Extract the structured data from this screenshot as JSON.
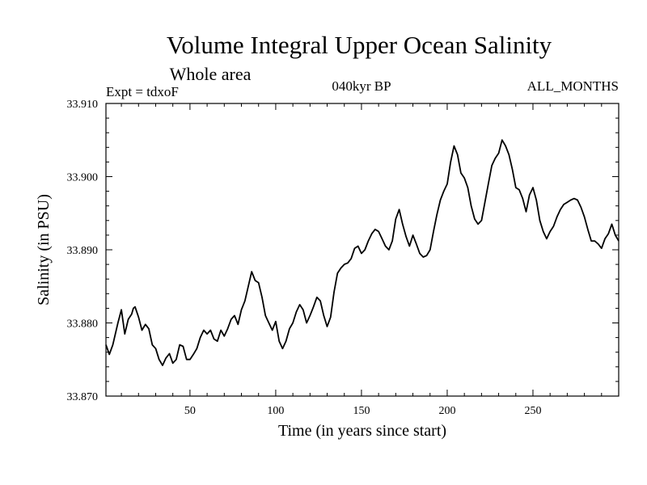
{
  "chart_data": {
    "type": "line",
    "title": "Volume Integral Upper Ocean Salinity",
    "subtitle": "Whole area",
    "header_left": "Expt = tdxoF",
    "header_center": "040kyr BP",
    "header_right": "ALL_MONTHS",
    "xlabel": "Time (in years since start)",
    "ylabel": "Salinity (in PSU)",
    "xlim": [
      1,
      300
    ],
    "ylim": [
      33.87,
      33.91
    ],
    "x_ticks": [
      50,
      100,
      150,
      200,
      250
    ],
    "x_tick_labels": [
      "50",
      "100",
      "150",
      "200",
      "250"
    ],
    "y_ticks": [
      33.87,
      33.88,
      33.89,
      33.9,
      33.91
    ],
    "y_tick_labels": [
      "33.870",
      "33.880",
      "33.890",
      "33.900",
      "33.910"
    ],
    "grid": false,
    "series": [
      {
        "color": "#000000",
        "x": [
          1,
          3,
          5,
          8,
          10,
          12,
          14,
          16,
          17,
          18,
          20,
          22,
          24,
          26,
          28,
          30,
          32,
          34,
          36,
          38,
          40,
          42,
          44,
          46,
          48,
          50,
          52,
          54,
          56,
          58,
          60,
          62,
          64,
          66,
          68,
          70,
          72,
          74,
          76,
          78,
          80,
          82,
          84,
          86,
          88,
          90,
          92,
          94,
          96,
          98,
          100,
          102,
          104,
          106,
          108,
          110,
          112,
          114,
          116,
          118,
          120,
          122,
          124,
          126,
          128,
          130,
          132,
          134,
          136,
          138,
          140,
          142,
          144,
          146,
          148,
          150,
          152,
          154,
          156,
          158,
          160,
          162,
          164,
          166,
          168,
          170,
          172,
          174,
          176,
          178,
          180,
          182,
          184,
          186,
          188,
          190,
          192,
          194,
          196,
          198,
          200,
          202,
          204,
          206,
          208,
          210,
          212,
          214,
          216,
          218,
          220,
          222,
          224,
          226,
          228,
          230,
          232,
          234,
          236,
          238,
          240,
          242,
          244,
          246,
          248,
          250,
          252,
          254,
          256,
          258,
          260,
          262,
          264,
          266,
          268,
          270,
          272,
          274,
          276,
          278,
          280,
          282,
          284,
          286,
          288,
          290,
          292,
          294,
          296,
          298,
          300
        ],
        "y": [
          33.877,
          33.8757,
          33.877,
          33.88,
          33.8818,
          33.8785,
          33.8805,
          33.8812,
          33.882,
          33.8822,
          33.8808,
          33.879,
          33.8798,
          33.8792,
          33.877,
          33.8765,
          33.875,
          33.8742,
          33.8752,
          33.8758,
          33.8745,
          33.875,
          33.877,
          33.8768,
          33.875,
          33.875,
          33.8757,
          33.8765,
          33.878,
          33.879,
          33.8785,
          33.879,
          33.8778,
          33.8775,
          33.879,
          33.8782,
          33.8792,
          33.8805,
          33.881,
          33.8798,
          33.8818,
          33.883,
          33.885,
          33.887,
          33.8858,
          33.8855,
          33.8835,
          33.881,
          33.88,
          33.879,
          33.8802,
          33.8775,
          33.8765,
          33.8775,
          33.8792,
          33.88,
          33.8815,
          33.8825,
          33.8818,
          33.88,
          33.881,
          33.8822,
          33.8835,
          33.883,
          33.881,
          33.8795,
          33.8808,
          33.8842,
          33.8868,
          33.8875,
          33.888,
          33.8882,
          33.8888,
          33.8902,
          33.8905,
          33.8895,
          33.89,
          33.8912,
          33.8922,
          33.8928,
          33.8925,
          33.8915,
          33.8905,
          33.89,
          33.8912,
          33.8942,
          33.8955,
          33.8935,
          33.8918,
          33.8905,
          33.892,
          33.8908,
          33.8895,
          33.889,
          33.8892,
          33.89,
          33.8925,
          33.8948,
          33.8968,
          33.898,
          33.899,
          33.902,
          33.9042,
          33.903,
          33.9005,
          33.8998,
          33.8985,
          33.896,
          33.8942,
          33.8935,
          33.894,
          33.8965,
          33.899,
          33.9015,
          33.9025,
          33.9032,
          33.905,
          33.9042,
          33.903,
          33.901,
          33.8985,
          33.8982,
          33.897,
          33.8952,
          33.8975,
          33.8985,
          33.8968,
          33.894,
          33.8925,
          33.8915,
          33.8925,
          33.8932,
          33.8945,
          33.8955,
          33.8962,
          33.8965,
          33.8968,
          33.897,
          33.8968,
          33.8958,
          33.8945,
          33.8928,
          33.8912,
          33.8912,
          33.8908,
          33.8902,
          33.8915,
          33.8922,
          33.8935,
          33.892,
          33.8912
        ]
      }
    ]
  }
}
